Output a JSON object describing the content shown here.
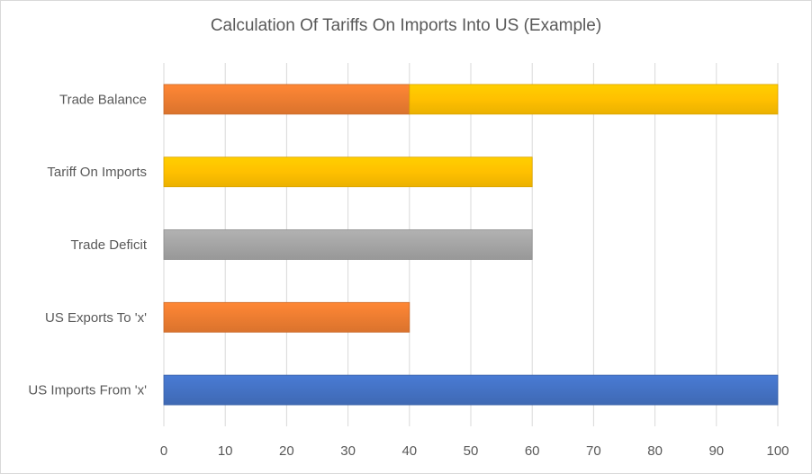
{
  "chart_data": {
    "type": "bar",
    "orientation": "horizontal",
    "stacked": true,
    "title": "Calculation Of Tariffs On Imports Into US (Example)",
    "categories": [
      "US Imports From 'x'",
      "US Exports To 'x'",
      "Trade Deficit",
      "Tariff On Imports",
      "Trade Balance"
    ],
    "bars": [
      {
        "category": "US Imports From 'x'",
        "segments": [
          {
            "value": 100,
            "color": "#4472c4"
          }
        ]
      },
      {
        "category": "US Exports To 'x'",
        "segments": [
          {
            "value": 40,
            "color": "#ed7d31"
          }
        ]
      },
      {
        "category": "Trade Deficit",
        "segments": [
          {
            "value": 60,
            "color": "#a5a5a5"
          }
        ]
      },
      {
        "category": "Tariff On Imports",
        "segments": [
          {
            "value": 60,
            "color": "#ffc000"
          }
        ]
      },
      {
        "category": "Trade Balance",
        "segments": [
          {
            "value": 40,
            "color": "#ed7d31"
          },
          {
            "value": 60,
            "color": "#ffc000"
          }
        ]
      }
    ],
    "xlim": [
      0,
      100
    ],
    "xticks": [
      0,
      10,
      20,
      30,
      40,
      50,
      60,
      70,
      80,
      90,
      100
    ],
    "grid": "vertical",
    "legend": "none"
  }
}
